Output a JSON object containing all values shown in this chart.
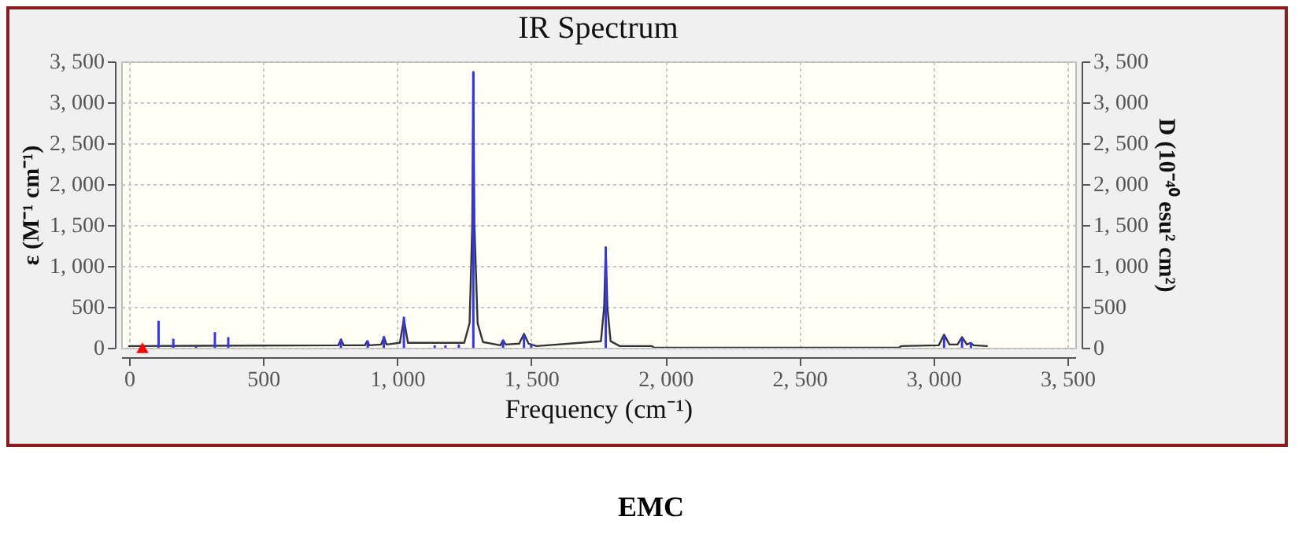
{
  "chart_data": {
    "type": "line",
    "title": "IR Spectrum",
    "xlabel": "Frequency (cm⁻¹)",
    "ylabel": "ε (M⁻¹ cm⁻¹)",
    "y2label": "D (10⁻⁴⁰ esu² cm²)",
    "xlim": [
      0,
      3500
    ],
    "ylim": [
      0,
      3500
    ],
    "y2lim": [
      0,
      3500
    ],
    "xticks": [
      {
        "value": 0,
        "label": "0"
      },
      {
        "value": 500,
        "label": "500"
      },
      {
        "value": 1000,
        "label": "1, 000"
      },
      {
        "value": 1500,
        "label": "1, 500"
      },
      {
        "value": 2000,
        "label": "2, 000"
      },
      {
        "value": 2500,
        "label": "2, 500"
      },
      {
        "value": 3000,
        "label": "3, 000"
      },
      {
        "value": 3500,
        "label": "3, 500"
      }
    ],
    "yticks": [
      {
        "value": 0,
        "label": "0"
      },
      {
        "value": 500,
        "label": "500"
      },
      {
        "value": 1000,
        "label": "1, 000"
      },
      {
        "value": 1500,
        "label": "1, 500"
      },
      {
        "value": 2000,
        "label": "2, 000"
      },
      {
        "value": 2500,
        "label": "2, 500"
      },
      {
        "value": 3000,
        "label": "3, 000"
      },
      {
        "value": 3500,
        "label": "3, 500"
      }
    ],
    "y2ticks": [
      {
        "value": 0,
        "label": "0"
      },
      {
        "value": 500,
        "label": "500"
      },
      {
        "value": 1000,
        "label": "1, 000"
      },
      {
        "value": 1500,
        "label": "1, 500"
      },
      {
        "value": 2000,
        "label": "2, 000"
      },
      {
        "value": 2500,
        "label": "2, 500"
      },
      {
        "value": 3000,
        "label": "3, 000"
      },
      {
        "value": 3500,
        "label": "3, 500"
      }
    ],
    "grid": true,
    "line_style": "solid",
    "series": [
      {
        "color": "#333333",
        "x": [
          0,
          780,
          791,
          800,
          880,
          888,
          896,
          940,
          951,
          960,
          1010,
          1025,
          1040,
          1250,
          1270,
          1280,
          1284,
          1288,
          1300,
          1320,
          1385,
          1395,
          1405,
          1455,
          1473,
          1490,
          1520,
          1760,
          1772,
          1778,
          1784,
          1796,
          1830,
          1950,
          1960,
          2870,
          2880,
          3020,
          3040,
          3060,
          3090,
          3107,
          3125,
          3140,
          3150,
          3200
        ],
        "values": [
          20,
          30,
          100,
          30,
          30,
          80,
          30,
          40,
          130,
          40,
          60,
          350,
          60,
          60,
          300,
          1500,
          3370,
          1500,
          300,
          70,
          30,
          90,
          40,
          50,
          170,
          50,
          20,
          80,
          500,
          1230,
          500,
          80,
          20,
          20,
          0,
          0,
          20,
          30,
          160,
          40,
          40,
          130,
          40,
          60,
          30,
          20
        ]
      },
      {
        "type": "bar",
        "axis": "y2",
        "color": "#3333ff",
        "x": [
          110,
          165,
          250,
          320,
          370,
          790,
          890,
          950,
          1025,
          1140,
          1180,
          1230,
          1284,
          1395,
          1473,
          1500,
          1778,
          3040,
          3107,
          3140
        ],
        "values": [
          330,
          110,
          20,
          190,
          130,
          110,
          90,
          140,
          380,
          30,
          30,
          40,
          3370,
          100,
          160,
          50,
          1230,
          150,
          120,
          60
        ]
      },
      {
        "type": "scatter",
        "marker": "triangle",
        "color": "#ff0000",
        "x": [
          50
        ],
        "values": [
          0
        ]
      }
    ],
    "annotations": [
      "EMC"
    ]
  }
}
